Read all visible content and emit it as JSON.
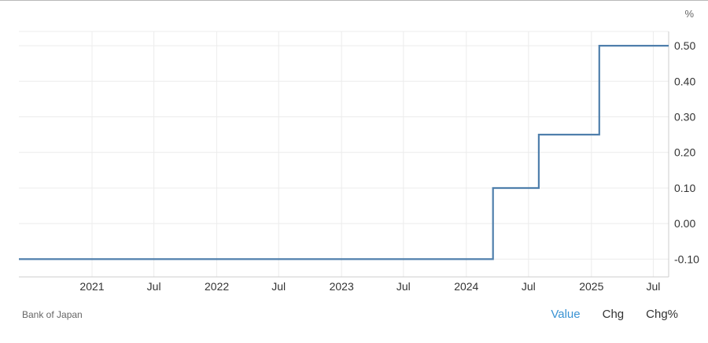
{
  "source": "Bank of Japan",
  "tabs": [
    {
      "label": "Value",
      "active": true
    },
    {
      "label": "Chg",
      "active": false
    },
    {
      "label": "Chg%",
      "active": false
    }
  ],
  "colors": {
    "line": "#4f7fac",
    "grid": "#ececec",
    "axis": "#cccccc",
    "active_tab": "#3a93d3"
  },
  "chart_data": {
    "type": "line",
    "step": true,
    "unit": "%",
    "x_range": [
      "2020-06-01",
      "2025-08-15"
    ],
    "y_range": [
      -0.15,
      0.54
    ],
    "y_ticks": [
      -0.1,
      0.0,
      0.1,
      0.2,
      0.3,
      0.4,
      0.5
    ],
    "y_tick_labels": [
      "-0.10",
      "0.00",
      "0.10",
      "0.20",
      "0.30",
      "0.40",
      "0.50"
    ],
    "x_ticks": [
      {
        "date": "2021-01-01",
        "label": "2021"
      },
      {
        "date": "2021-07-01",
        "label": "Jul"
      },
      {
        "date": "2022-01-01",
        "label": "2022"
      },
      {
        "date": "2022-07-01",
        "label": "Jul"
      },
      {
        "date": "2023-01-01",
        "label": "2023"
      },
      {
        "date": "2023-07-01",
        "label": "Jul"
      },
      {
        "date": "2024-01-01",
        "label": "2024"
      },
      {
        "date": "2024-07-01",
        "label": "Jul"
      },
      {
        "date": "2025-01-01",
        "label": "2025"
      },
      {
        "date": "2025-07-01",
        "label": "Jul"
      }
    ],
    "grid": true,
    "series": [
      {
        "points": [
          {
            "x": "2020-06-01",
            "y": -0.1
          },
          {
            "x": "2024-03-19",
            "y": 0.1
          },
          {
            "x": "2024-07-31",
            "y": 0.25
          },
          {
            "x": "2025-01-24",
            "y": 0.5
          },
          {
            "x": "2025-08-15",
            "y": 0.5
          }
        ]
      }
    ]
  }
}
